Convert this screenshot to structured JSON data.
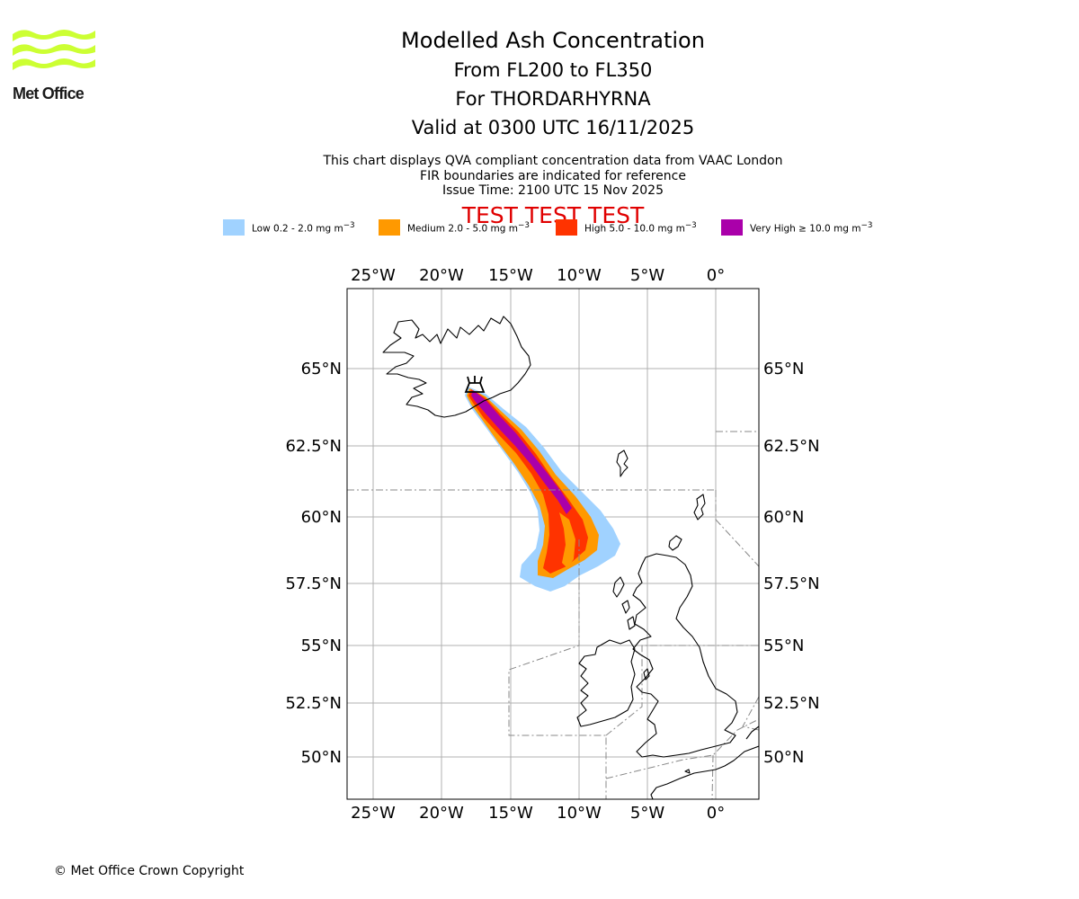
{
  "header": {
    "title": "Modelled Ash Concentration",
    "levels": "From FL200 to FL350",
    "volcano": "For THORDARHYRNA",
    "valid": "Valid at 0300 UTC 16/11/2025",
    "desc1": "This chart displays QVA compliant concentration data from VAAC London",
    "desc2": "FIR boundaries are indicated for reference",
    "issue": "Issue Time: 2100 UTC 15 Nov 2025",
    "test_banner": "TEST TEST TEST"
  },
  "logo": {
    "text": "Met Office",
    "color": "#ccff33"
  },
  "legend": [
    {
      "label": "Low 0.2 - 2.0 mg m",
      "sup": "−3",
      "color": "#a0d2ff"
    },
    {
      "label": "Medium 2.0 - 5.0 mg m",
      "sup": "−3",
      "color": "#ff9900"
    },
    {
      "label": "High 5.0 - 10.0 mg m",
      "sup": "−3",
      "color": "#ff3300"
    },
    {
      "label": "Very High ≥ 10.0 mg m",
      "sup": "−3",
      "color": "#aa00aa"
    }
  ],
  "map": {
    "lon_ticks": [
      "25°W",
      "20°W",
      "15°W",
      "10°W",
      "5°W",
      "0°"
    ],
    "lat_ticks": [
      "65°N",
      "62.5°N",
      "60°N",
      "57.5°N",
      "55°N",
      "52.5°N",
      "50°N"
    ]
  },
  "footer": {
    "copyright": "© Met Office Crown Copyright"
  }
}
